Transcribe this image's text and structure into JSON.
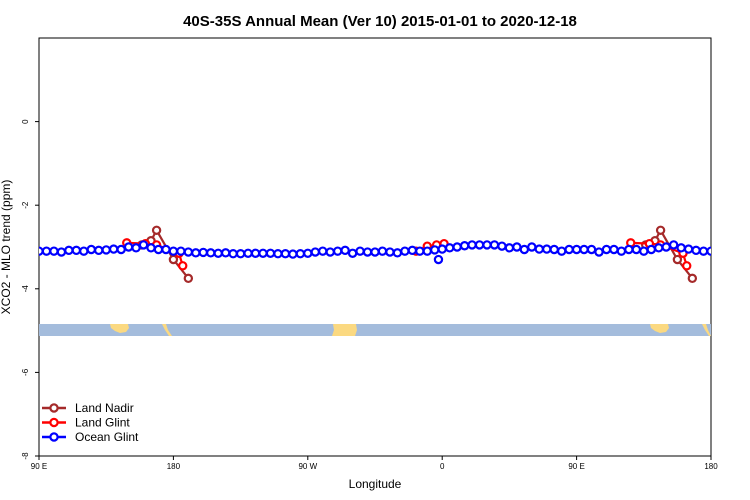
{
  "chart_data": {
    "type": "line",
    "title": "40S-35S Annual Mean (Ver 10)   2015-01-01 to 2020-12-18",
    "xlabel": "Longitude",
    "ylabel": "XCO2 - MLO trend (ppm)",
    "xlim": [
      90,
      450
    ],
    "ylim": [
      -8,
      2
    ],
    "x_ticks": [
      {
        "value": 90,
        "label": "90 E"
      },
      {
        "value": 180,
        "label": "180"
      },
      {
        "value": 270,
        "label": "90 W"
      },
      {
        "value": 360,
        "label": "0"
      },
      {
        "value": 450,
        "label": "90 E"
      },
      {
        "value": 540,
        "label": "180"
      }
    ],
    "y_ticks": [
      {
        "value": 0,
        "label": "0"
      },
      {
        "value": -2,
        "label": "-2"
      },
      {
        "value": -4,
        "label": "-4"
      },
      {
        "value": -6,
        "label": "-6"
      },
      {
        "value": -8,
        "label": "-8"
      }
    ],
    "legend_position": "bottom-left",
    "series": [
      {
        "name": "Land Nadir",
        "color": "#a52a2a",
        "segments": [
          {
            "x": [
              145,
              150,
              153,
              162,
              170
            ],
            "y": [
              -2.95,
              -2.85,
              -2.6,
              -3.3,
              -3.75
            ]
          },
          {
            "x": [
              415,
              420,
              423,
              432,
              440
            ],
            "y": [
              -2.95,
              -2.85,
              -2.6,
              -3.3,
              -3.75
            ]
          }
        ]
      },
      {
        "name": "Land Glint",
        "color": "#ff0000",
        "segments": [
          {
            "x": [
              137,
              147,
              153,
              165,
              167
            ],
            "y": [
              -2.9,
              -2.92,
              -2.95,
              -3.15,
              -3.45
            ]
          },
          {
            "x": [
              292,
              298,
              303,
              307
            ],
            "y": [
              -3.1,
              -2.98,
              -2.95,
              -2.92
            ]
          },
          {
            "x": [
              407,
              417,
              423,
              435,
              437
            ],
            "y": [
              -2.9,
              -2.92,
              -2.95,
              -3.15,
              -3.45
            ]
          }
        ]
      },
      {
        "name": "Ocean Glint",
        "color": "#0000ff",
        "segments": [
          {
            "x": [
              90,
              94,
              98,
              102,
              106,
              110,
              114,
              118,
              122,
              126,
              130,
              134,
              138,
              142,
              146,
              150,
              154,
              158,
              162,
              166,
              170,
              174,
              178,
              182,
              186,
              190,
              194,
              198,
              202,
              206,
              210,
              214,
              218,
              222,
              226,
              230,
              234,
              238,
              242,
              246,
              250,
              254,
              258,
              262,
              266,
              270,
              274,
              278,
              282,
              286,
              290,
              294,
              298,
              302,
              306,
              310,
              314,
              318,
              322,
              326,
              330,
              334,
              338,
              342,
              346,
              350,
              354,
              358,
              362,
              366,
              370,
              374,
              378,
              382,
              386,
              390,
              394,
              398,
              402,
              406,
              410,
              414,
              418,
              422,
              426,
              430,
              434,
              438,
              442,
              446,
              450
            ],
            "y": [
              -3.1,
              -3.1,
              -3.1,
              -3.12,
              -3.08,
              -3.08,
              -3.1,
              -3.06,
              -3.08,
              -3.07,
              -3.05,
              -3.06,
              -3.0,
              -3.02,
              -2.95,
              -3.02,
              -3.06,
              -3.06,
              -3.1,
              -3.1,
              -3.12,
              -3.14,
              -3.13,
              -3.14,
              -3.15,
              -3.14,
              -3.16,
              -3.16,
              -3.15,
              -3.15,
              -3.15,
              -3.15,
              -3.16,
              -3.16,
              -3.17,
              -3.16,
              -3.15,
              -3.12,
              -3.1,
              -3.12,
              -3.1,
              -3.08,
              -3.15,
              -3.1,
              -3.12,
              -3.12,
              -3.1,
              -3.12,
              -3.14,
              -3.1,
              -3.08,
              -3.1,
              -3.1,
              -3.07,
              -3.05,
              -3.02,
              -3.0,
              -2.97,
              -2.95,
              -2.95,
              -2.95,
              -2.95,
              -2.98,
              -3.02,
              -3.0,
              -3.06,
              -3.0,
              -3.05,
              -3.05,
              -3.06,
              -3.1,
              -3.06,
              -3.06,
              -3.06,
              -3.06,
              -3.12,
              -3.06,
              -3.06,
              -3.1,
              -3.06,
              -3.06,
              -3.1,
              -3.06,
              -3.02,
              -3.0,
              -2.95,
              -3.02,
              -3.05,
              -3.08,
              -3.1,
              -3.1
            ]
          }
        ],
        "extra_points": {
          "x": [
            304
          ],
          "y": [
            -3.3
          ]
        }
      }
    ],
    "colors": {
      "ocean_band": "#a4bcdc",
      "land_band": "#fbd981"
    }
  }
}
